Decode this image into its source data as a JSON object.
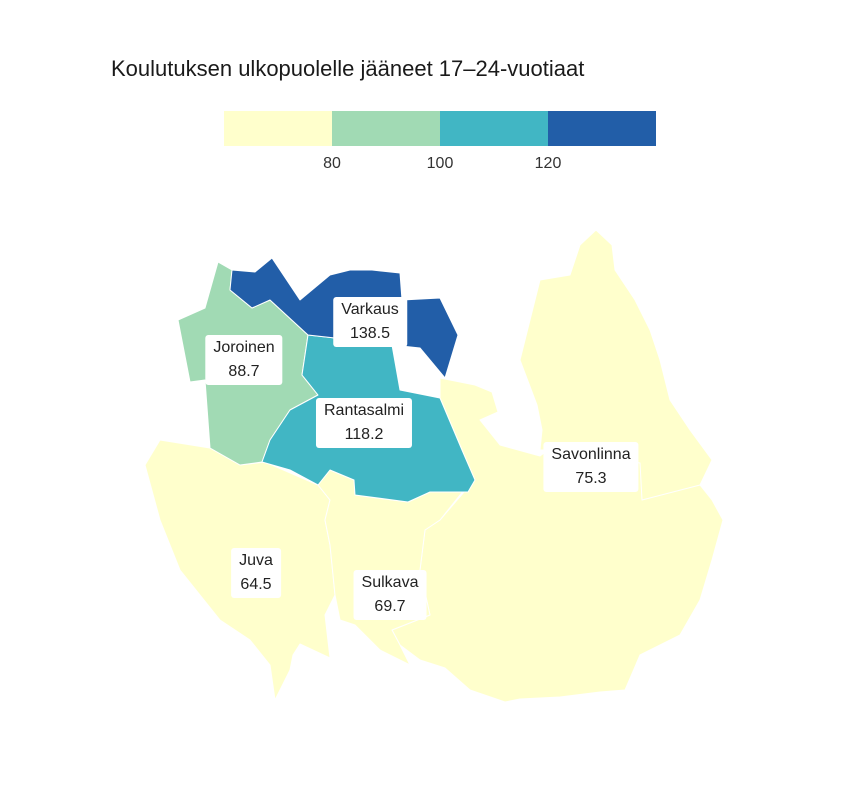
{
  "title": "Koulutuksen ulkopuolelle jääneet 17–24-vuotiaat",
  "legend": {
    "colors": [
      "#ffffcc",
      "#a1dab4",
      "#41b6c4",
      "#225ea8"
    ],
    "ticks": [
      "80",
      "100",
      "120"
    ]
  },
  "regions": [
    {
      "name": "Varkaus",
      "value": "138.5",
      "color": "#225ea8"
    },
    {
      "name": "Joroinen",
      "value": "88.7",
      "color": "#a1dab4"
    },
    {
      "name": "Rantasalmi",
      "value": "118.2",
      "color": "#41b6c4"
    },
    {
      "name": "Savonlinna",
      "value": "75.3",
      "color": "#ffffcc"
    },
    {
      "name": "Juva",
      "value": "64.5",
      "color": "#ffffcc"
    },
    {
      "name": "Sulkava",
      "value": "69.7",
      "color": "#ffffcc"
    }
  ]
}
